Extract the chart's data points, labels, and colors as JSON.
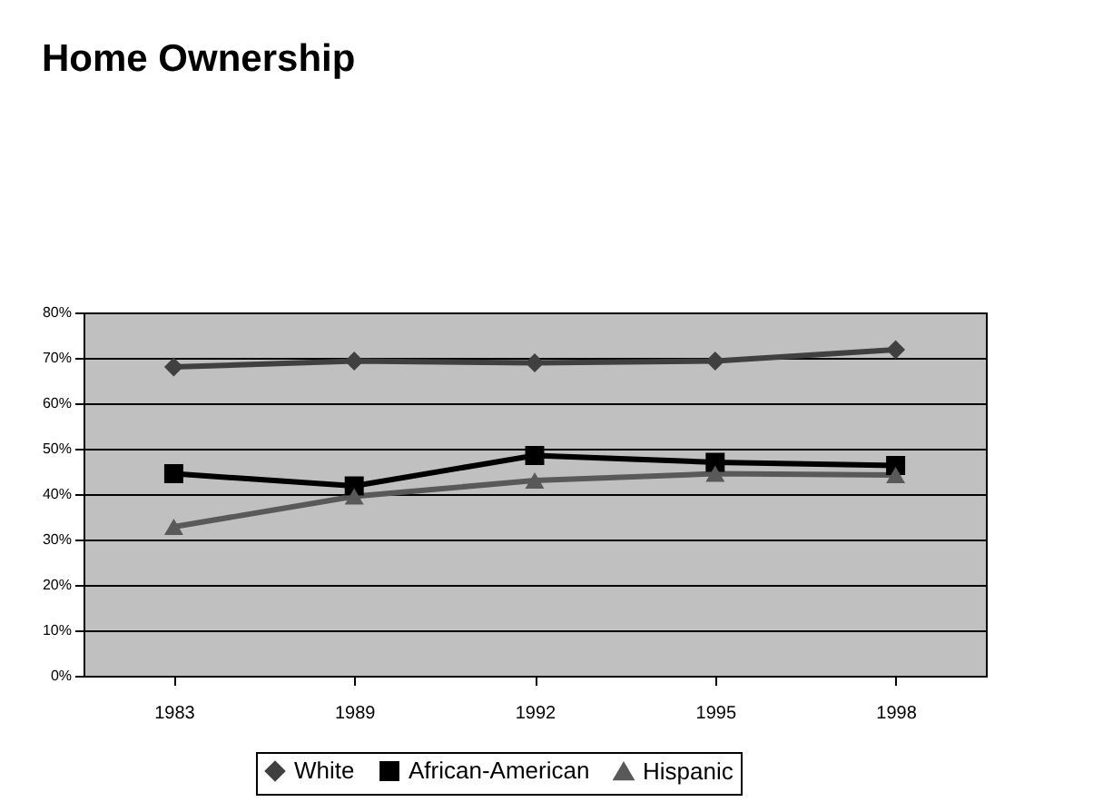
{
  "chart_data": {
    "type": "line",
    "title": "Home Ownership",
    "categories": [
      "1983",
      "1989",
      "1992",
      "1995",
      "1998"
    ],
    "series": [
      {
        "name": "White",
        "color": "#404040",
        "marker": "diamond",
        "values": [
          68,
          69.3,
          68.9,
          69.3,
          71.8
        ]
      },
      {
        "name": "African-American",
        "color": "#000000",
        "marker": "square",
        "values": [
          44.5,
          41.8,
          48.5,
          47,
          46.3
        ]
      },
      {
        "name": "Hispanic",
        "color": "#595959",
        "marker": "triangle",
        "values": [
          32.8,
          39.5,
          43,
          44.5,
          44.2
        ]
      }
    ],
    "ylim": [
      0,
      80
    ],
    "yticks": [
      {
        "value": 0,
        "label": "0%"
      },
      {
        "value": 10,
        "label": "10%"
      },
      {
        "value": 20,
        "label": "20%"
      },
      {
        "value": 30,
        "label": "30%"
      },
      {
        "value": 40,
        "label": "40%"
      },
      {
        "value": 50,
        "label": "50%"
      },
      {
        "value": 60,
        "label": "60%"
      },
      {
        "value": 70,
        "label": "70%"
      },
      {
        "value": 80,
        "label": "80%"
      }
    ],
    "grid": "y",
    "legend": "bottom",
    "line_style": "solid"
  }
}
